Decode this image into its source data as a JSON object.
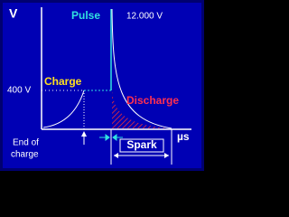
{
  "axis_label_y": "V",
  "axis_label_x": "µs",
  "pulse": {
    "label": "Pulse",
    "peak": "12.000 V"
  },
  "charge": {
    "label": "Charge",
    "level": "400 V",
    "end_label": [
      "End of",
      "charge"
    ]
  },
  "discharge": {
    "label": "Discharge"
  },
  "spark": {
    "label": "Spark"
  }
}
